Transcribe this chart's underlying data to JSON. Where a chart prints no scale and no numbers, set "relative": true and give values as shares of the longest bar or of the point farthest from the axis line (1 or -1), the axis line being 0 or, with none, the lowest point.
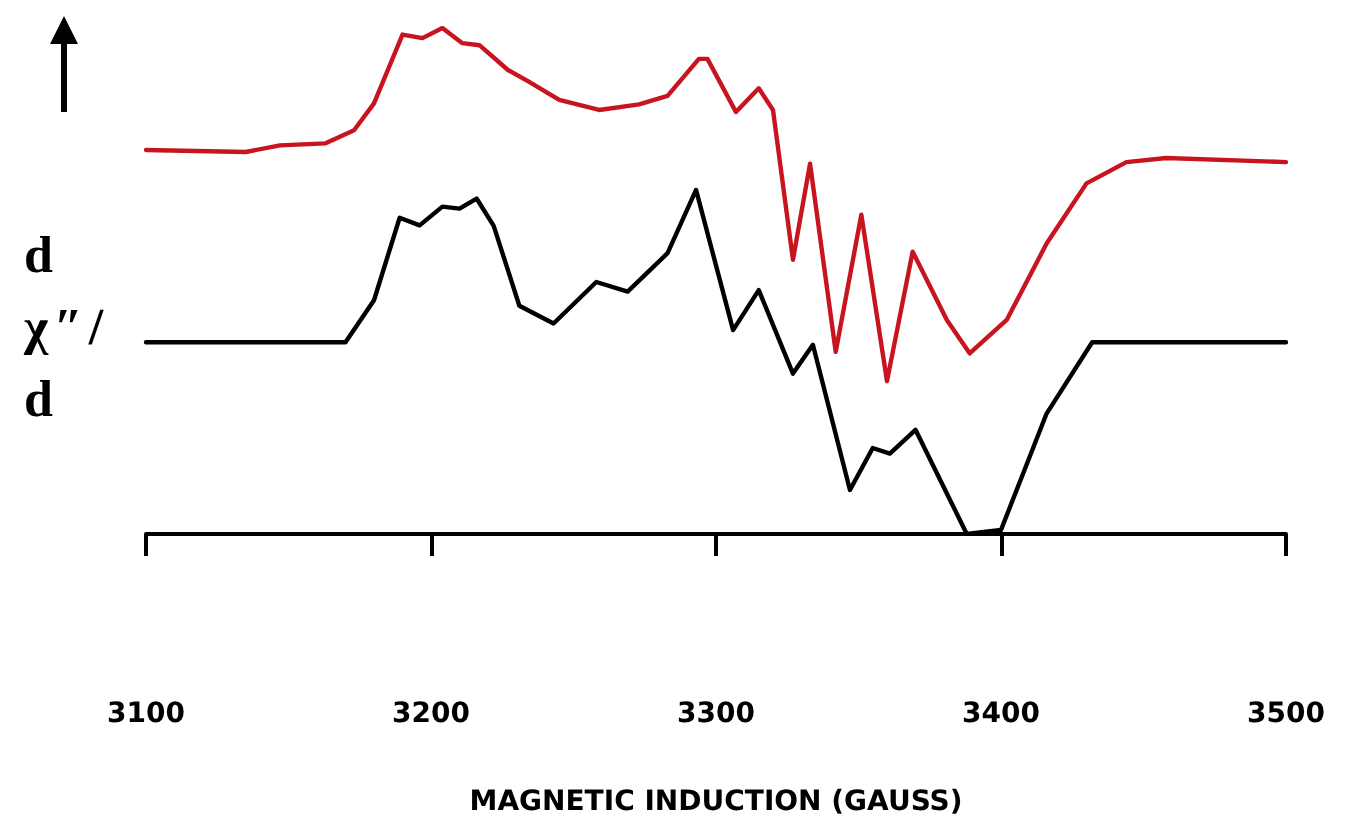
{
  "chart_data": {
    "type": "line",
    "relative": true,
    "xlabel": "MAGNETIC INDUCTION (GAUSS)",
    "ylabel": "dχ″/d",
    "xlim": [
      3100,
      3500
    ],
    "xticks": [
      3100,
      3200,
      3300,
      3400,
      3500
    ],
    "grid": false,
    "marker": "none",
    "line_style": "solid",
    "series": [
      {
        "color": "#c8141e",
        "x": [
          3100,
          3135,
          3147,
          3163,
          3173,
          3180,
          3190,
          3197,
          3204,
          3211,
          3217,
          3227,
          3234,
          3245,
          3259,
          3273,
          3283,
          3294,
          3297,
          3307,
          3315,
          3320,
          3327,
          3333,
          3342,
          3351,
          3360,
          3369,
          3381,
          3389,
          3402,
          3416,
          3430,
          3444,
          3458,
          3500
        ],
        "values": [
          0.759,
          0.755,
          0.768,
          0.772,
          0.798,
          0.851,
          0.987,
          0.98,
          1.0,
          0.97,
          0.966,
          0.917,
          0.895,
          0.858,
          0.838,
          0.849,
          0.866,
          0.939,
          0.939,
          0.834,
          0.881,
          0.838,
          0.542,
          0.732,
          0.36,
          0.631,
          0.302,
          0.558,
          0.423,
          0.357,
          0.423,
          0.574,
          0.693,
          0.735,
          0.743,
          0.735
        ]
      },
      {
        "color": "#000000",
        "x": [
          3100,
          3170,
          3180,
          3189,
          3196,
          3204,
          3210,
          3216,
          3222,
          3231,
          3243,
          3258,
          3269,
          3283,
          3293,
          3306,
          3315,
          3327,
          3334,
          3347,
          3355,
          3361,
          3370,
          3388,
          3400,
          3416,
          3432,
          3500
        ],
        "values": [
          0.379,
          0.379,
          0.462,
          0.625,
          0.61,
          0.647,
          0.643,
          0.663,
          0.609,
          0.451,
          0.416,
          0.498,
          0.479,
          0.555,
          0.68,
          0.403,
          0.482,
          0.317,
          0.374,
          0.087,
          0.17,
          0.159,
          0.206,
          0,
          0.008,
          0.238,
          0.379,
          0.379
        ]
      }
    ]
  }
}
